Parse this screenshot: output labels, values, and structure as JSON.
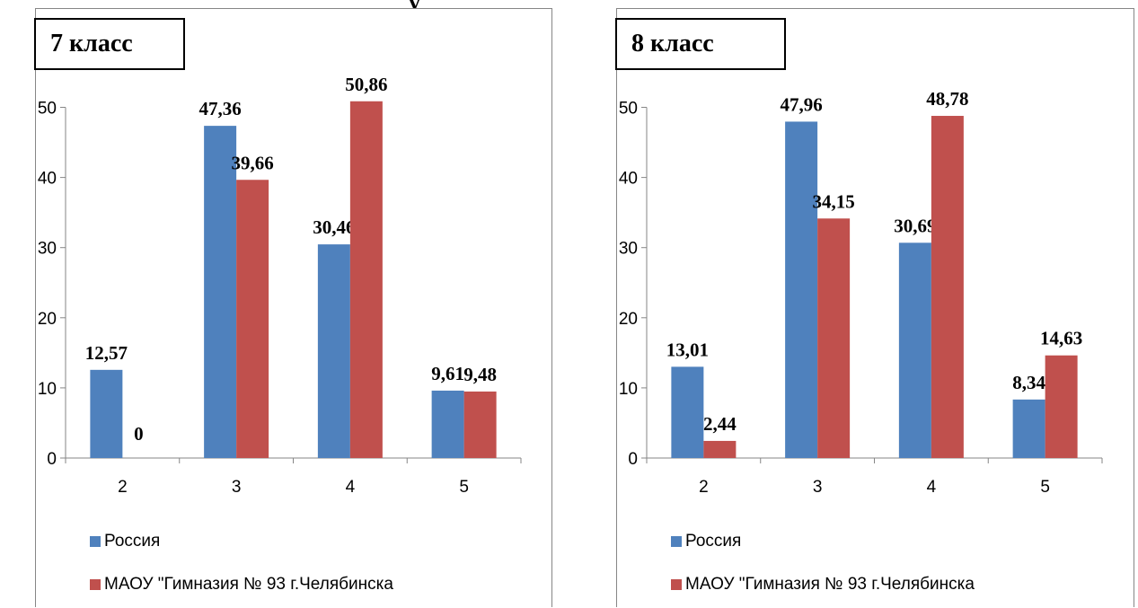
{
  "top_text_fragment": "у",
  "colors": {
    "russia": "#4F81BD",
    "school": "#C0504D",
    "axis": "#868686"
  },
  "chart_data": [
    {
      "type": "bar",
      "title": "7 класс",
      "categories": [
        "2",
        "3",
        "4",
        "5"
      ],
      "series": [
        {
          "name": "Россия",
          "values": [
            12.57,
            47.36,
            30.46,
            9.61
          ],
          "labels": [
            "12,57",
            "47,36",
            "30,46",
            "9,61"
          ]
        },
        {
          "name": "МАОУ \"Гимназия № 93 г.Челябинска",
          "values": [
            0,
            39.66,
            50.86,
            9.48
          ],
          "labels": [
            "0",
            "39,66",
            "50,86",
            "9,48"
          ]
        }
      ],
      "ylim": [
        0,
        50
      ],
      "yticks": [
        "0",
        "10",
        "20",
        "30",
        "40",
        "50"
      ],
      "legend_position": "bottom"
    },
    {
      "type": "bar",
      "title": "8 класс",
      "categories": [
        "2",
        "3",
        "4",
        "5"
      ],
      "series": [
        {
          "name": "Россия",
          "values": [
            13.01,
            47.96,
            30.69,
            8.34
          ],
          "labels": [
            "13,01",
            "47,96",
            "30,69",
            "8,34"
          ]
        },
        {
          "name": "МАОУ \"Гимназия № 93 г.Челябинска",
          "values": [
            2.44,
            34.15,
            48.78,
            14.63
          ],
          "labels": [
            "2,44",
            "34,15",
            "48,78",
            "14,63"
          ]
        }
      ],
      "ylim": [
        0,
        50
      ],
      "yticks": [
        "0",
        "10",
        "20",
        "30",
        "40",
        "50"
      ],
      "legend_position": "bottom"
    }
  ]
}
